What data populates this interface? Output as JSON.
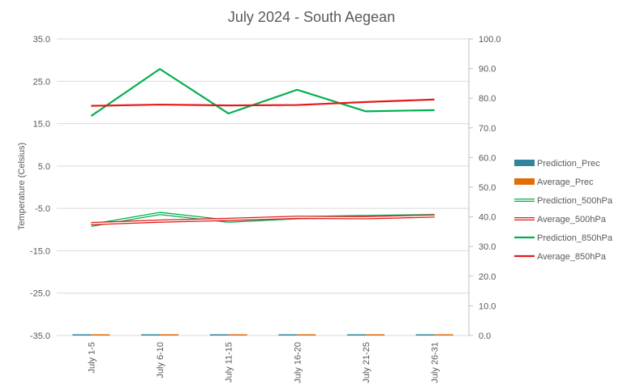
{
  "chart_data": {
    "type": "line",
    "title": "July 2024 - South Aegean",
    "ylabel": "Temperature (Celsius)",
    "y2label": "",
    "categories": [
      "July 1-5",
      "July 6-10",
      "July 11-15",
      "July 16-20",
      "July 21-25",
      "July 26-31"
    ],
    "ylim": [
      -35.0,
      35.0
    ],
    "y_ticks": [
      "35.0",
      "25.0",
      "15.0",
      "5.0",
      "-5.0",
      "-15.0",
      "-25.0",
      "-35.0"
    ],
    "y2lim": [
      0.0,
      100.0
    ],
    "y2_ticks": [
      "100.0",
      "90.0",
      "80.0",
      "70.0",
      "60.0",
      "50.0",
      "40.0",
      "30.0",
      "20.0",
      "10.0",
      "0.0"
    ],
    "grid": true,
    "legend_position": "right",
    "series": [
      {
        "name": "Prediction_Prec",
        "kind": "bar",
        "axis": "right",
        "color": "#31849B",
        "values": [
          0,
          0,
          0,
          0,
          0,
          0
        ]
      },
      {
        "name": "Average_Prec",
        "kind": "bar",
        "axis": "right",
        "color": "#E36C09",
        "values": [
          0,
          0,
          0,
          0,
          0,
          0
        ]
      },
      {
        "name": "Prediction_500hPa",
        "kind": "line-double",
        "axis": "left",
        "color": "#00B050",
        "values": [
          -9.0,
          -6.2,
          -8.0,
          -7.2,
          -6.9,
          -6.7
        ]
      },
      {
        "name": "Average_500hPa",
        "kind": "line-double",
        "axis": "left",
        "color": "#E02020",
        "values": [
          -8.6,
          -8.0,
          -7.6,
          -7.1,
          -7.2,
          -6.8
        ]
      },
      {
        "name": "Prediction_850hPa",
        "kind": "line",
        "axis": "left",
        "color": "#00B050",
        "values": [
          16.8,
          27.9,
          17.4,
          23.0,
          17.9,
          18.2
        ]
      },
      {
        "name": "Average_850hPa",
        "kind": "line",
        "axis": "left",
        "color": "#E41A1A",
        "values": [
          19.2,
          19.5,
          19.3,
          19.4,
          20.1,
          20.7
        ]
      }
    ]
  }
}
